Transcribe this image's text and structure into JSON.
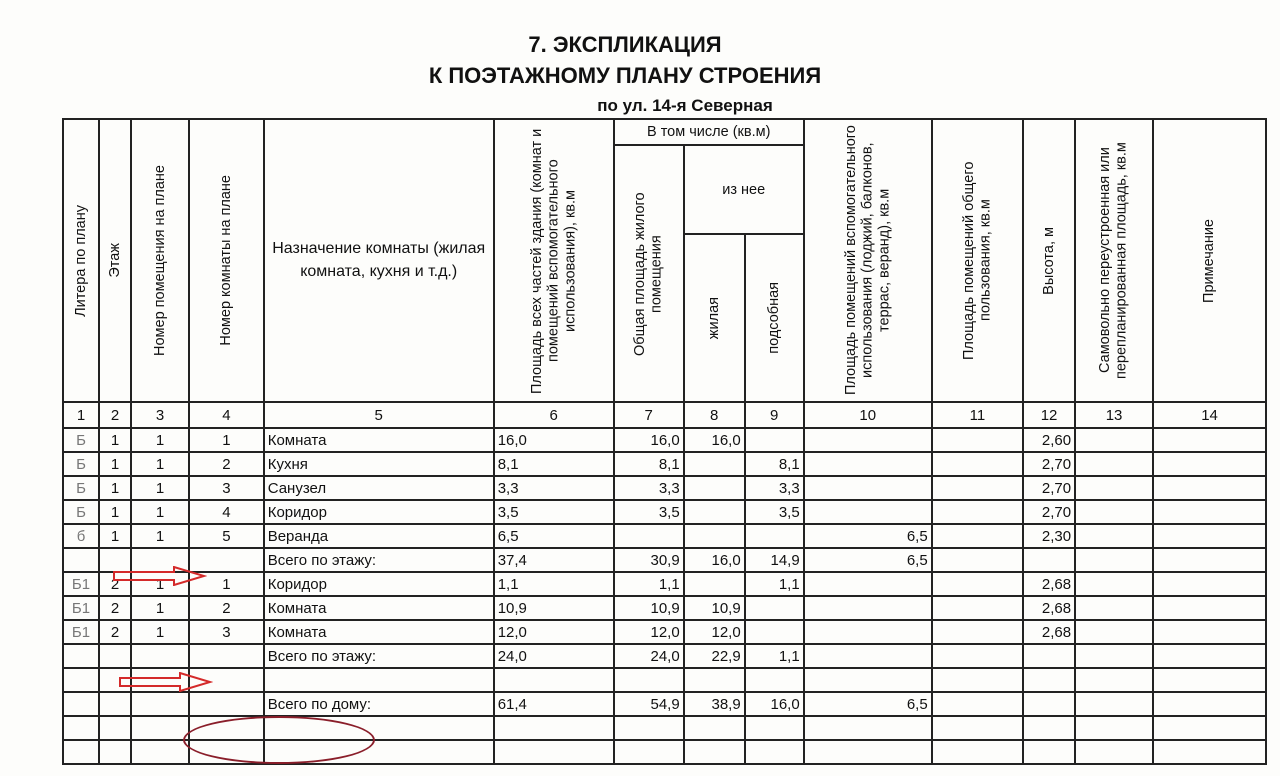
{
  "title": "7. ЭКСПЛИКАЦИЯ",
  "subtitle": "К ПОЭТАЖНОМУ ПЛАНУ СТРОЕНИЯ",
  "address": "по ул. 14-я Северная",
  "headers": {
    "c1": "Литера по плану",
    "c2": "Этаж",
    "c3": "Номер помещения на плане",
    "c4": "Номер комнаты на плане",
    "c5": "Назначение комнаты (жилая комната, кухня и т.д.)",
    "c6": "Площадь всех частей здания (комнат и помещений вспомогательного использования), кв.м",
    "group": "В том числе (кв.м)",
    "c7": "Общая площадь жилого помещения",
    "subgroup": "из нее",
    "c8": "жилая",
    "c9": "подсобная",
    "c10": "Площадь помещений вспомогательного использования (лоджий, балконов, террас, веранд), кв.м",
    "c11": "Площадь помещений общего пользования, кв.м",
    "c12": "Высота, м",
    "c13": "Самовольно переустроенная или перепланированная площадь, кв.м",
    "c14": "Примечание"
  },
  "column_numbers": [
    "1",
    "2",
    "3",
    "4",
    "5",
    "6",
    "7",
    "8",
    "9",
    "10",
    "11",
    "12",
    "13",
    "14"
  ],
  "rows": [
    [
      "Б",
      "1",
      "1",
      "1",
      "Комната",
      "16,0",
      "16,0",
      "16,0",
      "",
      "",
      "",
      "2,60",
      "",
      ""
    ],
    [
      "Б",
      "1",
      "1",
      "2",
      "Кухня",
      "8,1",
      "8,1",
      "",
      "8,1",
      "",
      "",
      "2,70",
      "",
      ""
    ],
    [
      "Б",
      "1",
      "1",
      "3",
      "Санузел",
      "3,3",
      "3,3",
      "",
      "3,3",
      "",
      "",
      "2,70",
      "",
      ""
    ],
    [
      "Б",
      "1",
      "1",
      "4",
      "Коридор",
      "3,5",
      "3,5",
      "",
      "3,5",
      "",
      "",
      "2,70",
      "",
      ""
    ],
    [
      "б",
      "1",
      "1",
      "5",
      "Веранда",
      "6,5",
      "",
      "",
      "",
      "6,5",
      "",
      "2,30",
      "",
      ""
    ],
    [
      "",
      "",
      "",
      "",
      "Всего по этажу:",
      "37,4",
      "30,9",
      "16,0",
      "14,9",
      "6,5",
      "",
      "",
      "",
      ""
    ],
    [
      "Б1",
      "2",
      "1",
      "1",
      "Коридор",
      "1,1",
      "1,1",
      "",
      "1,1",
      "",
      "",
      "2,68",
      "",
      ""
    ],
    [
      "Б1",
      "2",
      "1",
      "2",
      "Комната",
      "10,9",
      "10,9",
      "10,9",
      "",
      "",
      "",
      "2,68",
      "",
      ""
    ],
    [
      "Б1",
      "2",
      "1",
      "3",
      "Комната",
      "12,0",
      "12,0",
      "12,0",
      "",
      "",
      "",
      "2,68",
      "",
      ""
    ],
    [
      "",
      "",
      "",
      "",
      "Всего по этажу:",
      "24,0",
      "24,0",
      "22,9",
      "1,1",
      "",
      "",
      "",
      "",
      ""
    ],
    [
      "",
      "",
      "",
      "",
      "",
      "",
      "",
      "",
      "",
      "",
      "",
      "",
      "",
      ""
    ],
    [
      "",
      "",
      "",
      "",
      "Всего по дому:",
      "61,4",
      "54,9",
      "38,9",
      "16,0",
      "6,5",
      "",
      "",
      "",
      ""
    ],
    [
      "",
      "",
      "",
      "",
      "",
      "",
      "",
      "",
      "",
      "",
      "",
      "",
      "",
      ""
    ],
    [
      "",
      "",
      "",
      "",
      "",
      "",
      "",
      "",
      "",
      "",
      "",
      "",
      "",
      ""
    ]
  ],
  "annotation_color": "#d42a2a",
  "oval_color": "#8a1e2a"
}
